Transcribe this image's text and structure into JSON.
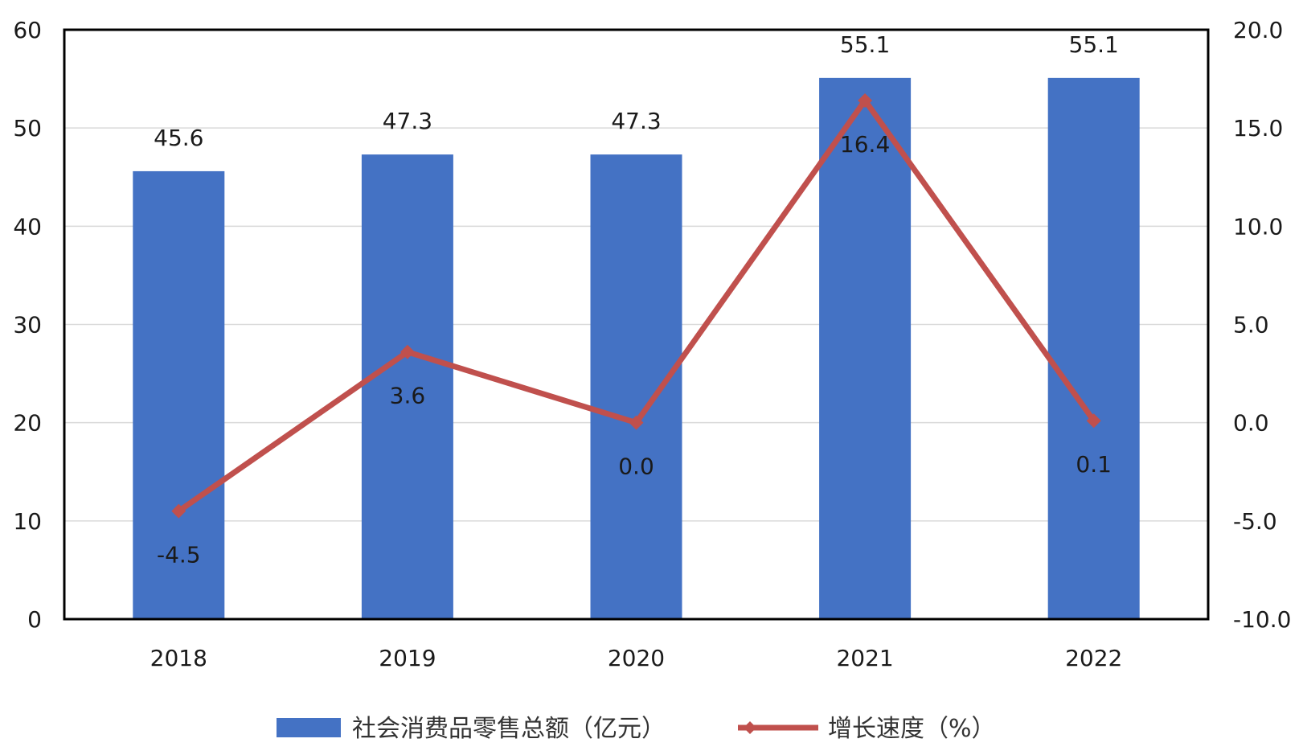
{
  "chart_data": {
    "type": "bar",
    "categories": [
      "2018",
      "2019",
      "2020",
      "2021",
      "2022"
    ],
    "series": [
      {
        "name": "社会消费品零售总额（亿元）",
        "type": "bar",
        "axis": "left",
        "values": [
          45.6,
          47.3,
          47.3,
          55.1,
          55.1
        ],
        "labels": [
          "45.6",
          "47.3",
          "47.3",
          "55.1",
          "55.1"
        ],
        "color": "#4472C4"
      },
      {
        "name": "增长速度（%）",
        "type": "line",
        "axis": "right",
        "values": [
          -4.5,
          3.6,
          0.0,
          16.4,
          0.1
        ],
        "labels": [
          "-4.5",
          "3.6",
          "0.0",
          "16.4",
          "0.1"
        ],
        "color": "#C0504D"
      }
    ],
    "y_left": {
      "ylim": [
        0,
        60
      ],
      "ticks": [
        "0",
        "10",
        "20",
        "30",
        "40",
        "50",
        "60"
      ]
    },
    "y_right": {
      "ylim": [
        -10,
        20
      ],
      "ticks": [
        "-10.0",
        "-5.0",
        "0.0",
        "5.0",
        "10.0",
        "15.0",
        "20.0"
      ]
    },
    "grid": true,
    "legend": "bottom",
    "title": "",
    "xlabel": "",
    "ylabel": ""
  }
}
